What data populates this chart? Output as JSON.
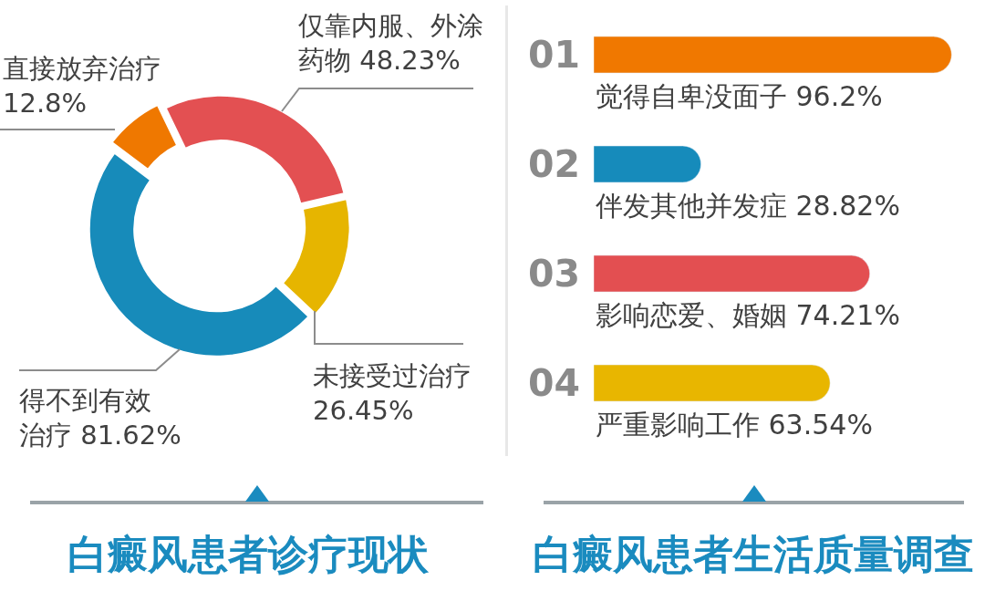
{
  "chart_data": [
    {
      "type": "donut",
      "title": "白癜风患者诊疗现状",
      "categories": [
        "直接放弃治疗",
        "仅靠内服、外涂药物",
        "未接受过治疗",
        "得不到有效治疗"
      ],
      "values": [
        12.8,
        48.23,
        26.45,
        81.62
      ],
      "value_labels": [
        "12.8%",
        "48.23%",
        "26.45%",
        "81.62%"
      ],
      "colors": [
        "#ef7800",
        "#e35052",
        "#e6b500",
        "#178bba"
      ]
    },
    {
      "type": "bar",
      "orientation": "horizontal",
      "title": "白癜风患者生活质量调查",
      "categories": [
        "01",
        "02",
        "03",
        "04"
      ],
      "values": [
        96.2,
        28.82,
        74.21,
        63.54
      ],
      "value_labels": [
        "觉得自卑没面子 96.2%",
        "伴发其他并发症 28.82%",
        "影响恋爱、婚姻 74.21%",
        "严重影响工作 63.54%"
      ],
      "colors": [
        "#f07800",
        "#168bbb",
        "#e34f51",
        "#e8b600"
      ],
      "tick_labels": "y"
    }
  ]
}
